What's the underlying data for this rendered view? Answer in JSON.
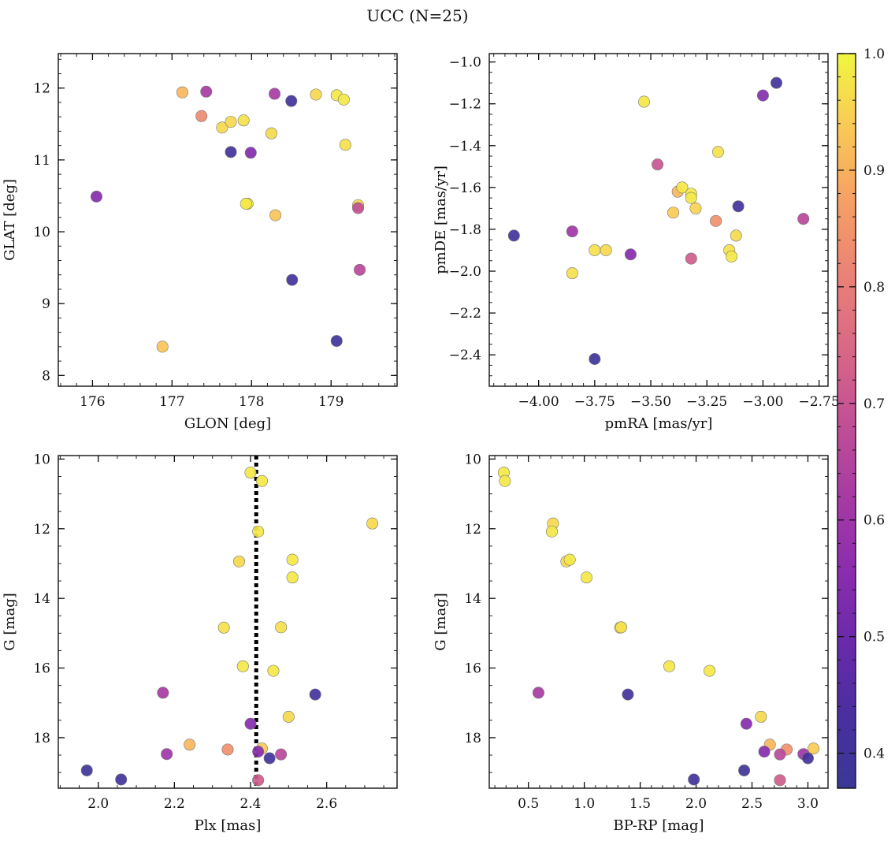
{
  "figure": {
    "title": "UCC (N=25)"
  },
  "colormap": {
    "name": "plasma",
    "range": [
      0.37,
      1.0
    ],
    "ticks": [
      0.4,
      0.5,
      0.6,
      0.7,
      0.8,
      0.9,
      1.0
    ],
    "tick_labels": [
      "0.4",
      "0.5",
      "0.6",
      "0.7",
      "0.8",
      "0.9",
      "1.0"
    ],
    "stops": [
      [
        0.0,
        "#3a3896"
      ],
      [
        0.1,
        "#4a2ea0"
      ],
      [
        0.2,
        "#6a2aaa"
      ],
      [
        0.3,
        "#8c2dae"
      ],
      [
        0.4,
        "#a83ba3"
      ],
      [
        0.5,
        "#c25095"
      ],
      [
        0.6,
        "#d96886"
      ],
      [
        0.7,
        "#ea8276"
      ],
      [
        0.8,
        "#f6a064"
      ],
      [
        0.9,
        "#f9c956"
      ],
      [
        1.0,
        "#f2f641"
      ]
    ]
  },
  "chart_data": [
    {
      "type": "scatter",
      "xlabel": "GLON [deg]",
      "ylabel": "GLAT [deg]",
      "xlim": [
        175.57,
        179.83
      ],
      "ylim": [
        7.85,
        12.48
      ],
      "yinvert": false,
      "xticks": [
        176,
        177,
        178,
        179
      ],
      "xtick_labels": [
        "176",
        "177",
        "178",
        "179"
      ],
      "yticks": [
        8,
        9,
        10,
        11,
        12
      ],
      "ytick_labels": [
        "8",
        "9",
        "10",
        "11",
        "12"
      ],
      "xminor": 0.2,
      "yminor": 0.2,
      "vline": null,
      "points": [
        {
          "x": 176.05,
          "y": 10.49,
          "c": 0.55
        },
        {
          "x": 176.88,
          "y": 8.4,
          "c": 0.93
        },
        {
          "x": 177.13,
          "y": 11.94,
          "c": 0.91
        },
        {
          "x": 177.37,
          "y": 11.61,
          "c": 0.83
        },
        {
          "x": 177.43,
          "y": 11.95,
          "c": 0.62
        },
        {
          "x": 177.63,
          "y": 11.45,
          "c": 0.96
        },
        {
          "x": 177.74,
          "y": 11.53,
          "c": 0.96
        },
        {
          "x": 177.74,
          "y": 11.11,
          "c": 0.4
        },
        {
          "x": 177.9,
          "y": 11.55,
          "c": 0.97
        },
        {
          "x": 177.95,
          "y": 10.39,
          "c": 0.98
        },
        {
          "x": 177.99,
          "y": 11.1,
          "c": 0.54
        },
        {
          "x": 178.25,
          "y": 11.37,
          "c": 0.96
        },
        {
          "x": 178.29,
          "y": 11.92,
          "c": 0.62
        },
        {
          "x": 178.3,
          "y": 10.23,
          "c": 0.93
        },
        {
          "x": 178.5,
          "y": 11.82,
          "c": 0.4
        },
        {
          "x": 178.51,
          "y": 9.33,
          "c": 0.41
        },
        {
          "x": 178.81,
          "y": 11.91,
          "c": 0.96
        },
        {
          "x": 179.07,
          "y": 11.9,
          "c": 0.98
        },
        {
          "x": 179.07,
          "y": 8.48,
          "c": 0.39
        },
        {
          "x": 179.16,
          "y": 11.84,
          "c": 0.98
        },
        {
          "x": 179.18,
          "y": 11.21,
          "c": 0.97
        },
        {
          "x": 179.34,
          "y": 10.37,
          "c": 0.96
        },
        {
          "x": 179.34,
          "y": 10.33,
          "c": 0.68
        },
        {
          "x": 179.36,
          "y": 9.47,
          "c": 0.66
        },
        {
          "x": 177.93,
          "y": 10.39,
          "c": 0.98
        }
      ]
    },
    {
      "type": "scatter",
      "xlabel": "pmRA [mas/yr]",
      "ylabel": "pmDE [mas/yr]",
      "xlim": [
        -4.22,
        -2.71
      ],
      "ylim": [
        -2.55,
        -0.96
      ],
      "yinvert": false,
      "xticks": [
        -4.0,
        -3.75,
        -3.5,
        -3.25,
        -3.0,
        -2.75
      ],
      "xtick_labels": [
        "−4.00",
        "−3.75",
        "−3.50",
        "−3.25",
        "−3.00",
        "−2.75"
      ],
      "yticks": [
        -2.4,
        -2.2,
        -2.0,
        -1.8,
        -1.6,
        -1.4,
        -1.2,
        -1.0
      ],
      "ytick_labels": [
        "−2.4",
        "−2.2",
        "−2.0",
        "−1.8",
        "−1.6",
        "−1.4",
        "−1.2",
        "−1.0"
      ],
      "xminor": 0.05,
      "yminor": 0.05,
      "vline": null,
      "points": [
        {
          "x": -4.11,
          "y": -1.83,
          "c": 0.4
        },
        {
          "x": -3.85,
          "y": -1.81,
          "c": 0.6
        },
        {
          "x": -3.85,
          "y": -2.01,
          "c": 0.97
        },
        {
          "x": -3.75,
          "y": -1.9,
          "c": 0.97
        },
        {
          "x": -3.75,
          "y": -2.42,
          "c": 0.39
        },
        {
          "x": -3.7,
          "y": -1.9,
          "c": 0.96
        },
        {
          "x": -3.59,
          "y": -1.92,
          "c": 0.55
        },
        {
          "x": -3.53,
          "y": -1.19,
          "c": 0.98
        },
        {
          "x": -3.47,
          "y": -1.49,
          "c": 0.7
        },
        {
          "x": -3.4,
          "y": -1.72,
          "c": 0.94
        },
        {
          "x": -3.38,
          "y": -1.62,
          "c": 0.91
        },
        {
          "x": -3.36,
          "y": -1.6,
          "c": 0.98
        },
        {
          "x": -3.32,
          "y": -1.63,
          "c": 0.98
        },
        {
          "x": -3.32,
          "y": -1.65,
          "c": 0.98
        },
        {
          "x": -3.32,
          "y": -1.94,
          "c": 0.72
        },
        {
          "x": -3.3,
          "y": -1.7,
          "c": 0.95
        },
        {
          "x": -3.21,
          "y": -1.76,
          "c": 0.84
        },
        {
          "x": -3.2,
          "y": -1.43,
          "c": 0.97
        },
        {
          "x": -3.15,
          "y": -1.9,
          "c": 0.97
        },
        {
          "x": -3.14,
          "y": -1.93,
          "c": 0.98
        },
        {
          "x": -3.12,
          "y": -1.83,
          "c": 0.96
        },
        {
          "x": -3.11,
          "y": -1.69,
          "c": 0.41
        },
        {
          "x": -3.0,
          "y": -1.16,
          "c": 0.55
        },
        {
          "x": -2.94,
          "y": -1.1,
          "c": 0.4
        },
        {
          "x": -2.82,
          "y": -1.75,
          "c": 0.66
        }
      ]
    },
    {
      "type": "scatter",
      "xlabel": "Plx [mas]",
      "ylabel": "G [mag]",
      "xlim": [
        1.895,
        2.785
      ],
      "ylim": [
        9.9,
        19.45
      ],
      "yinvert": true,
      "xticks": [
        2.0,
        2.2,
        2.4,
        2.6
      ],
      "xtick_labels": [
        "2.0",
        "2.2",
        "2.4",
        "2.6"
      ],
      "yticks": [
        10,
        12,
        14,
        16,
        18
      ],
      "ytick_labels": [
        "10",
        "12",
        "14",
        "16",
        "18"
      ],
      "xminor": 0.05,
      "yminor": 0.5,
      "vline": 2.415,
      "points": [
        {
          "x": 2.4,
          "y": 10.39,
          "c": 0.98
        },
        {
          "x": 2.43,
          "y": 10.63,
          "c": 0.98
        },
        {
          "x": 2.72,
          "y": 11.85,
          "c": 0.96
        },
        {
          "x": 2.42,
          "y": 12.08,
          "c": 0.98
        },
        {
          "x": 2.37,
          "y": 12.94,
          "c": 0.96
        },
        {
          "x": 2.51,
          "y": 12.89,
          "c": 0.98
        },
        {
          "x": 2.51,
          "y": 13.4,
          "c": 0.98
        },
        {
          "x": 2.33,
          "y": 14.84,
          "c": 0.97
        },
        {
          "x": 2.48,
          "y": 14.83,
          "c": 0.97
        },
        {
          "x": 2.38,
          "y": 15.95,
          "c": 0.98
        },
        {
          "x": 2.46,
          "y": 16.08,
          "c": 0.98
        },
        {
          "x": 2.17,
          "y": 16.71,
          "c": 0.62
        },
        {
          "x": 2.57,
          "y": 16.76,
          "c": 0.41
        },
        {
          "x": 2.5,
          "y": 17.4,
          "c": 0.96
        },
        {
          "x": 2.4,
          "y": 17.6,
          "c": 0.55
        },
        {
          "x": 2.24,
          "y": 18.2,
          "c": 0.91
        },
        {
          "x": 2.34,
          "y": 18.34,
          "c": 0.84
        },
        {
          "x": 2.43,
          "y": 18.31,
          "c": 0.94
        },
        {
          "x": 2.18,
          "y": 18.47,
          "c": 0.6
        },
        {
          "x": 2.42,
          "y": 18.4,
          "c": 0.55
        },
        {
          "x": 2.48,
          "y": 18.48,
          "c": 0.66
        },
        {
          "x": 2.45,
          "y": 18.59,
          "c": 0.4
        },
        {
          "x": 1.97,
          "y": 18.94,
          "c": 0.39
        },
        {
          "x": 2.06,
          "y": 19.2,
          "c": 0.4
        },
        {
          "x": 2.42,
          "y": 19.22,
          "c": 0.72
        }
      ]
    },
    {
      "type": "scatter",
      "xlabel": "BP-RP [mag]",
      "ylabel": "G [mag]",
      "xlim": [
        0.15,
        3.18
      ],
      "ylim": [
        9.9,
        19.45
      ],
      "yinvert": true,
      "xticks": [
        0.5,
        1.0,
        1.5,
        2.0,
        2.5,
        3.0
      ],
      "xtick_labels": [
        "0.5",
        "1.0",
        "1.5",
        "2.0",
        "2.5",
        "3.0"
      ],
      "yticks": [
        10,
        12,
        14,
        16,
        18
      ],
      "ytick_labels": [
        "10",
        "12",
        "14",
        "16",
        "18"
      ],
      "xminor": 0.1,
      "yminor": 0.5,
      "vline": null,
      "points": [
        {
          "x": 0.28,
          "y": 10.39,
          "c": 0.98
        },
        {
          "x": 0.29,
          "y": 10.63,
          "c": 0.98
        },
        {
          "x": 0.72,
          "y": 11.85,
          "c": 0.96
        },
        {
          "x": 0.71,
          "y": 12.08,
          "c": 0.98
        },
        {
          "x": 0.84,
          "y": 12.94,
          "c": 0.96
        },
        {
          "x": 0.87,
          "y": 12.89,
          "c": 0.98
        },
        {
          "x": 1.02,
          "y": 13.4,
          "c": 0.98
        },
        {
          "x": 1.32,
          "y": 14.84,
          "c": 0.97
        },
        {
          "x": 1.33,
          "y": 14.83,
          "c": 0.97
        },
        {
          "x": 1.76,
          "y": 15.95,
          "c": 0.98
        },
        {
          "x": 2.12,
          "y": 16.08,
          "c": 0.98
        },
        {
          "x": 0.59,
          "y": 16.71,
          "c": 0.62
        },
        {
          "x": 1.39,
          "y": 16.76,
          "c": 0.41
        },
        {
          "x": 2.58,
          "y": 17.4,
          "c": 0.96
        },
        {
          "x": 2.45,
          "y": 17.6,
          "c": 0.55
        },
        {
          "x": 2.66,
          "y": 18.2,
          "c": 0.91
        },
        {
          "x": 2.81,
          "y": 18.34,
          "c": 0.84
        },
        {
          "x": 3.05,
          "y": 18.31,
          "c": 0.94
        },
        {
          "x": 2.96,
          "y": 18.47,
          "c": 0.6
        },
        {
          "x": 2.61,
          "y": 18.4,
          "c": 0.55
        },
        {
          "x": 2.75,
          "y": 18.48,
          "c": 0.66
        },
        {
          "x": 3.0,
          "y": 18.59,
          "c": 0.4
        },
        {
          "x": 2.43,
          "y": 18.94,
          "c": 0.39
        },
        {
          "x": 1.98,
          "y": 19.2,
          "c": 0.4
        },
        {
          "x": 2.75,
          "y": 19.22,
          "c": 0.72
        }
      ]
    }
  ]
}
